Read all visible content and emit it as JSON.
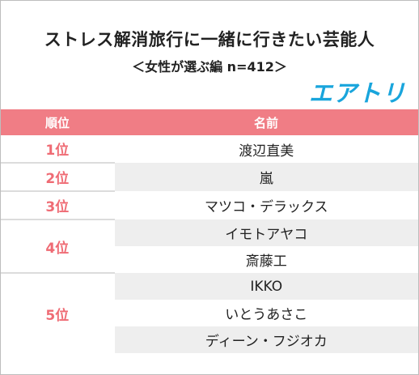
{
  "title": "ストレス解消旅行に一緒に行きたい芸能人",
  "subtitle": "＜女性が選ぶ編 n=412＞",
  "logo": "エアトリ",
  "header": {
    "rank": "順位",
    "name": "名前"
  },
  "ranks": [
    "1位",
    "2位",
    "3位",
    "4位",
    "5位"
  ],
  "names": [
    "渡辺直美",
    "嵐",
    "マツコ・デラックス",
    "イモトアヤコ",
    "斎藤工",
    "IKKO",
    "いとうあさこ",
    "ディーン・フジオカ"
  ],
  "colors": {
    "header_bg": "#f07d85",
    "rank_text": "#ef6b74",
    "logo": "#19a5dc",
    "stripe": "#eeeeee"
  }
}
